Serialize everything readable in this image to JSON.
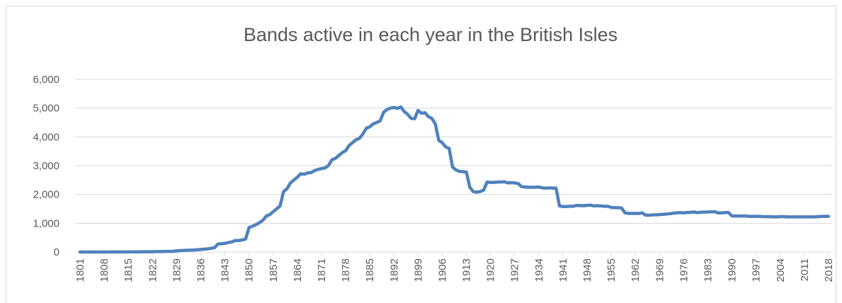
{
  "chart_data": {
    "type": "line",
    "title": "Bands active in each year in the British Isles",
    "x": [
      1801,
      1802,
      1803,
      1804,
      1805,
      1806,
      1807,
      1808,
      1809,
      1810,
      1811,
      1812,
      1813,
      1814,
      1815,
      1816,
      1817,
      1818,
      1819,
      1820,
      1821,
      1822,
      1823,
      1824,
      1825,
      1826,
      1827,
      1828,
      1829,
      1830,
      1831,
      1832,
      1833,
      1834,
      1835,
      1836,
      1837,
      1838,
      1839,
      1840,
      1841,
      1842,
      1843,
      1844,
      1845,
      1846,
      1847,
      1848,
      1849,
      1850,
      1851,
      1852,
      1853,
      1854,
      1855,
      1856,
      1857,
      1858,
      1859,
      1860,
      1861,
      1862,
      1863,
      1864,
      1865,
      1866,
      1867,
      1868,
      1869,
      1870,
      1871,
      1872,
      1873,
      1874,
      1875,
      1876,
      1877,
      1878,
      1879,
      1880,
      1881,
      1882,
      1883,
      1884,
      1885,
      1886,
      1887,
      1888,
      1889,
      1890,
      1891,
      1892,
      1893,
      1894,
      1895,
      1896,
      1897,
      1898,
      1899,
      1900,
      1901,
      1902,
      1903,
      1904,
      1905,
      1906,
      1907,
      1908,
      1909,
      1910,
      1911,
      1912,
      1913,
      1914,
      1915,
      1916,
      1917,
      1918,
      1919,
      1920,
      1921,
      1922,
      1923,
      1924,
      1925,
      1926,
      1927,
      1928,
      1929,
      1930,
      1931,
      1932,
      1933,
      1934,
      1935,
      1936,
      1937,
      1938,
      1939,
      1940,
      1941,
      1942,
      1943,
      1944,
      1945,
      1946,
      1947,
      1948,
      1949,
      1950,
      1951,
      1952,
      1953,
      1954,
      1955,
      1956,
      1957,
      1958,
      1959,
      1960,
      1961,
      1962,
      1963,
      1964,
      1965,
      1966,
      1967,
      1968,
      1969,
      1970,
      1971,
      1972,
      1973,
      1974,
      1975,
      1976,
      1977,
      1978,
      1979,
      1980,
      1981,
      1982,
      1983,
      1984,
      1985,
      1986,
      1987,
      1988,
      1989,
      1990,
      1991,
      1992,
      1993,
      1994,
      1995,
      1996,
      1997,
      1998,
      1999,
      2000,
      2001,
      2002,
      2003,
      2004,
      2005,
      2006,
      2007,
      2008,
      2009,
      2010,
      2011,
      2012,
      2013,
      2014,
      2015,
      2016,
      2017,
      2018
    ],
    "series": [
      {
        "name": "Bands",
        "color": "#4f81bd",
        "values": [
          0,
          0,
          0,
          0,
          0,
          1,
          1,
          1,
          2,
          2,
          3,
          3,
          4,
          4,
          5,
          5,
          6,
          7,
          8,
          9,
          10,
          12,
          14,
          16,
          18,
          20,
          22,
          25,
          40,
          50,
          55,
          60,
          65,
          70,
          80,
          90,
          100,
          110,
          130,
          150,
          280,
          290,
          300,
          330,
          350,
          400,
          400,
          420,
          450,
          850,
          900,
          950,
          1020,
          1100,
          1250,
          1300,
          1400,
          1500,
          1600,
          2100,
          2200,
          2400,
          2500,
          2600,
          2720,
          2700,
          2750,
          2760,
          2830,
          2870,
          2900,
          2920,
          3000,
          3200,
          3250,
          3350,
          3450,
          3520,
          3700,
          3800,
          3900,
          3950,
          4100,
          4300,
          4350,
          4450,
          4500,
          4550,
          4850,
          4950,
          5000,
          5020,
          4990,
          5040,
          4880,
          4780,
          4640,
          4630,
          4920,
          4820,
          4840,
          4700,
          4640,
          4450,
          3880,
          3800,
          3650,
          3600,
          2950,
          2850,
          2800,
          2790,
          2780,
          2250,
          2100,
          2080,
          2100,
          2150,
          2430,
          2420,
          2420,
          2430,
          2430,
          2440,
          2400,
          2410,
          2400,
          2380,
          2270,
          2260,
          2250,
          2250,
          2250,
          2260,
          2230,
          2220,
          2230,
          2220,
          2220,
          1600,
          1580,
          1580,
          1590,
          1590,
          1620,
          1610,
          1610,
          1620,
          1630,
          1600,
          1610,
          1600,
          1590,
          1590,
          1550,
          1540,
          1540,
          1530,
          1360,
          1340,
          1340,
          1340,
          1340,
          1360,
          1280,
          1280,
          1290,
          1290,
          1300,
          1310,
          1320,
          1330,
          1350,
          1360,
          1370,
          1360,
          1370,
          1380,
          1390,
          1370,
          1380,
          1390,
          1390,
          1400,
          1400,
          1360,
          1360,
          1370,
          1370,
          1250,
          1250,
          1250,
          1250,
          1250,
          1240,
          1240,
          1240,
          1240,
          1230,
          1230,
          1230,
          1220,
          1220,
          1230,
          1230,
          1220,
          1220,
          1220,
          1220,
          1220,
          1220,
          1220,
          1220,
          1220,
          1230,
          1240,
          1240,
          1240
        ]
      }
    ],
    "xlim": [
      1801,
      2018
    ],
    "xticks": [
      1801,
      1808,
      1815,
      1822,
      1829,
      1836,
      1843,
      1850,
      1857,
      1864,
      1871,
      1878,
      1885,
      1892,
      1899,
      1906,
      1913,
      1920,
      1927,
      1934,
      1941,
      1948,
      1955,
      1962,
      1969,
      1976,
      1983,
      1990,
      1997,
      2004,
      2011,
      2018
    ],
    "ylim": [
      0,
      6000
    ],
    "yticks": [
      0,
      {
        "value": 1000,
        "label": "1,000"
      },
      {
        "value": 2000,
        "label": "2,000"
      },
      {
        "value": 3000,
        "label": "3,000"
      },
      {
        "value": 4000,
        "label": "4,000"
      },
      {
        "value": 5000,
        "label": "5,000"
      },
      {
        "value": 6000,
        "label": "6,000"
      }
    ],
    "grid": true
  }
}
